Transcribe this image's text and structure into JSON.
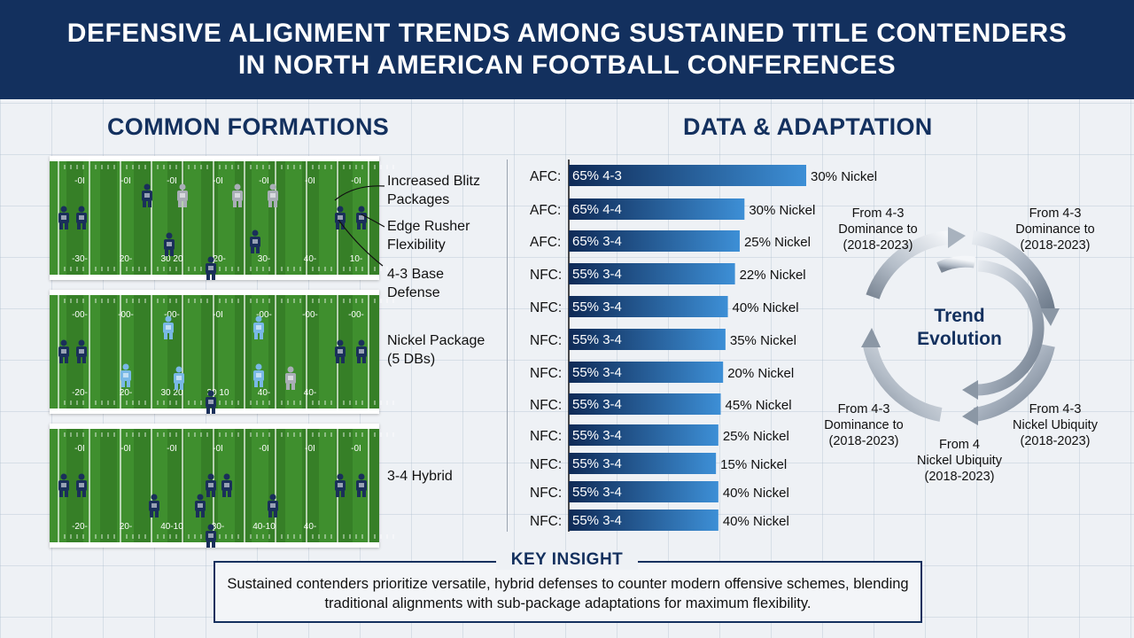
{
  "header": {
    "title_line1": "DEFENSIVE ALIGNMENT TRENDS AMONG SUSTAINED TITLE CONTENDERS",
    "title_line2": "IN NORTH AMERICAN FOOTBALL CONFERENCES"
  },
  "formations": {
    "section_title": "COMMON FORMATIONS",
    "labels": {
      "blitz": "Increased Blitz Packages",
      "edge": "Edge Rusher Flexibility",
      "base43": "4-3 Base Defense",
      "nickel": "Nickel Package (5 DBs)",
      "hybrid34": "3-4 Hybrid"
    },
    "field_markers": {
      "field1_top": [
        "-0I",
        "-0I",
        "-0I",
        "-0I",
        "-0I",
        "-0I",
        "-0I"
      ],
      "field1_bottom": [
        "-30-",
        "20-",
        "30 20",
        "-20-",
        "30-",
        "40-",
        "10-"
      ],
      "field2_top": [
        "-00-",
        "-00-",
        "-00-",
        "-0I",
        "-00-",
        "-00-",
        "-00-"
      ],
      "field2_bottom": [
        "-20-",
        "20-",
        "30 20",
        "30 10",
        "40-",
        "40-",
        ""
      ],
      "field3_top": [
        "-0I",
        "-0I",
        "-0I",
        "-0I",
        "-0I",
        "-0I",
        "-0I"
      ],
      "field3_bottom": [
        "-20-",
        "20-",
        "40-10",
        "30-",
        "40-10",
        "40-",
        ""
      ]
    },
    "colors": {
      "navy": "#1a2f5a",
      "light_blue": "#79b8e6",
      "gray": "#a9aeb6"
    }
  },
  "data_section": {
    "section_title": "DATA & ADAPTATION",
    "chart_data": {
      "type": "bar",
      "orientation": "horizontal",
      "categories": [
        "AFC:",
        "AFC:",
        "AFC:",
        "NFC:",
        "NFC:",
        "NFC:",
        "NFC:",
        "NFC:",
        "NFC:",
        "NFC:",
        "NFC:",
        "NFC:"
      ],
      "series": [
        {
          "inner_labels": [
            "65% 4-3",
            "65% 4-4",
            "65% 3-4",
            "55% 3-4",
            "55% 3-4",
            "55% 3-4",
            "55% 3-4",
            "55% 3-4",
            "55% 3-4",
            "55% 3-4",
            "55% 3-4",
            "55% 3-4"
          ],
          "values": [
            65,
            65,
            65,
            55,
            55,
            55,
            55,
            55,
            55,
            55,
            55,
            55
          ],
          "bar_length_relative": [
            1.0,
            0.74,
            0.72,
            0.7,
            0.67,
            0.66,
            0.65,
            0.64,
            0.63,
            0.62,
            0.63,
            0.63
          ]
        }
      ],
      "value_labels": [
        "30% Nickel",
        "30% Nickel",
        "25% Nickel",
        "22% Nickel",
        "40% Nickel",
        "35% Nickel",
        "20% Nickel",
        "45% Nickel",
        "25% Nickel",
        "15% Nickel",
        "40% Nickel",
        "40% Nickel"
      ],
      "bar_color_start": "#0f2a56",
      "bar_color_end": "#3d8fd6"
    },
    "cycle": {
      "center_line1": "Trend",
      "center_line2": "Evolution",
      "labels": [
        [
          "From 4-3",
          "Dominance to",
          "(2018-2023)"
        ],
        [
          "From 4-3",
          "Dominance to",
          "(2018-2023)"
        ],
        [
          "From 4-3",
          "Nickel Ubiquity",
          "(2018-2023)"
        ],
        [
          "From 4",
          "Nickel Ubiquity",
          "(2018-2023)"
        ],
        [
          "From 4-3",
          "Dominance to",
          "(2018-2023)"
        ]
      ]
    }
  },
  "insight": {
    "title": "KEY INSIGHT",
    "text": "Sustained contenders prioritize versatile, hybrid defenses to counter modern offensive schemes, blending traditional alignments with sub-package adaptations for maximum flexibility."
  }
}
